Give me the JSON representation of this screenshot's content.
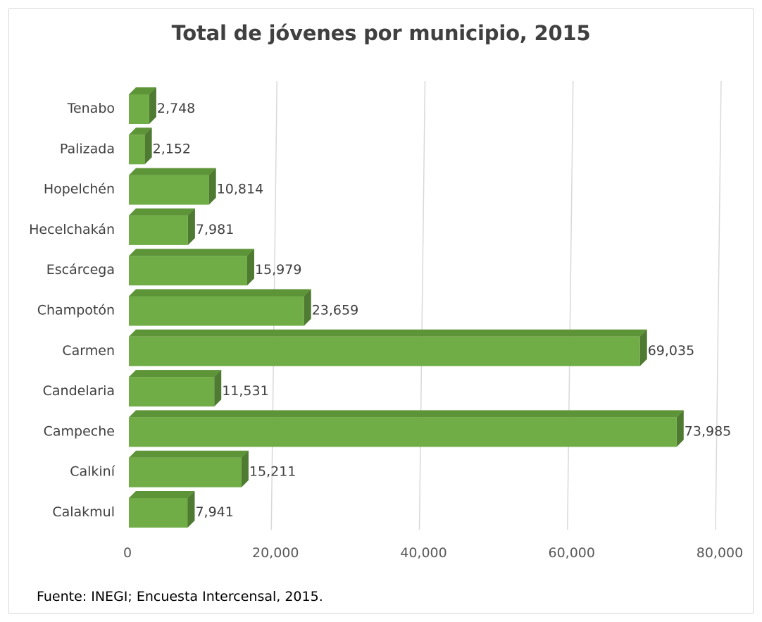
{
  "chart_data": {
    "type": "bar",
    "orientation": "horizontal",
    "title": "Total de jóvenes por municipio, 2015",
    "categories": [
      "Tenabo",
      "Palizada",
      "Hopelchén",
      "Hecelchakán",
      "Escárcega",
      "Champotón",
      "Carmen",
      "Candelaria",
      "Campeche",
      "Calkiní",
      "Calakmul"
    ],
    "values": [
      2748,
      2152,
      10814,
      7981,
      15979,
      23659,
      69035,
      11531,
      73985,
      15211,
      7941
    ],
    "value_labels": [
      "2,748",
      "2,152",
      "10,814",
      "7,981",
      "15,979",
      "23,659",
      "69,035",
      "11,531",
      "73,985",
      "15,211",
      "7,941"
    ],
    "x_ticks": [
      0,
      20000,
      40000,
      60000,
      80000
    ],
    "x_tick_labels": [
      "0",
      "20,000",
      "40,000",
      "60,000",
      "80,000"
    ],
    "xlim": [
      0,
      80000
    ],
    "grid": true,
    "legend": "none",
    "bar_color": "#70ad47",
    "bar_shade_color": "#4e7a31",
    "bar_top_color": "#5e9438"
  },
  "source": "Fuente: INEGI; Encuesta Intercensal, 2015."
}
